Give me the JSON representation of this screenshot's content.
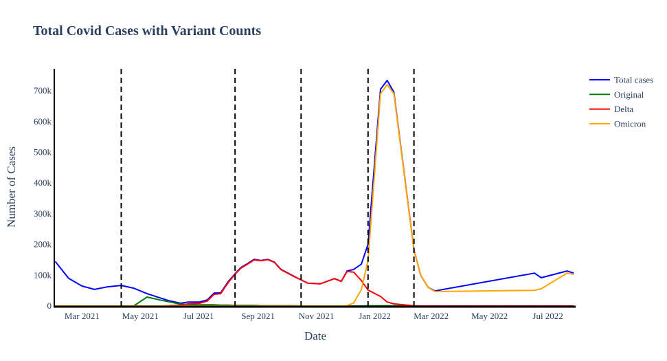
{
  "chart_data": {
    "type": "line",
    "title": "Total Covid Cases with Variant Counts",
    "xlabel": "Date",
    "ylabel": "Number of Cases",
    "xlim": [
      "2021-01-31",
      "2022-07-30"
    ],
    "ylim": [
      0,
      772000
    ],
    "grid": false,
    "legend_placement": "top-right, outside plot",
    "x_ticks": [
      {
        "date": "2021-03-01",
        "label": "Mar 2021"
      },
      {
        "date": "2021-05-01",
        "label": "May 2021"
      },
      {
        "date": "2021-07-01",
        "label": "Jul 2021"
      },
      {
        "date": "2021-09-01",
        "label": "Sep 2021"
      },
      {
        "date": "2021-11-01",
        "label": "Nov 2021"
      },
      {
        "date": "2022-01-01",
        "label": "Jan 2022"
      },
      {
        "date": "2022-03-01",
        "label": "Mar 2022"
      },
      {
        "date": "2022-05-01",
        "label": "May 2022"
      },
      {
        "date": "2022-07-01",
        "label": "Jul 2022"
      }
    ],
    "y_ticks": [
      {
        "value": 0,
        "label": "0"
      },
      {
        "value": 100000,
        "label": "100k"
      },
      {
        "value": 200000,
        "label": "200k"
      },
      {
        "value": 300000,
        "label": "300k"
      },
      {
        "value": 400000,
        "label": "400k"
      },
      {
        "value": 500000,
        "label": "500k"
      },
      {
        "value": 600000,
        "label": "600k"
      },
      {
        "value": 700000,
        "label": "700k"
      }
    ],
    "vertical_dashed_lines": [
      "2021-04-11",
      "2021-08-08",
      "2021-10-16",
      "2021-12-25",
      "2022-02-11"
    ],
    "x": [
      "2021-02-01",
      "2021-02-15",
      "2021-03-01",
      "2021-03-14",
      "2021-03-27",
      "2021-04-11",
      "2021-04-24",
      "2021-05-08",
      "2021-05-21",
      "2021-05-30",
      "2021-06-12",
      "2021-06-20",
      "2021-07-02",
      "2021-07-10",
      "2021-07-17",
      "2021-07-24",
      "2021-08-01",
      "2021-08-08",
      "2021-08-14",
      "2021-08-21",
      "2021-08-28",
      "2021-09-04",
      "2021-09-11",
      "2021-09-18",
      "2021-09-25",
      "2021-10-09",
      "2021-10-16",
      "2021-10-23",
      "2021-11-05",
      "2021-11-20",
      "2021-11-27",
      "2021-12-03",
      "2021-12-10",
      "2021-12-18",
      "2021-12-25",
      "2022-01-07",
      "2022-01-14",
      "2022-01-21",
      "2022-02-11",
      "2022-02-18",
      "2022-02-26",
      "2022-03-05",
      "2022-06-17",
      "2022-06-24",
      "2022-07-21",
      "2022-07-28"
    ],
    "series": [
      {
        "name": "Total cases",
        "color": "#0000ff",
        "values": [
          145000,
          90000,
          65000,
          54000,
          62000,
          67000,
          58000,
          40000,
          27000,
          18000,
          9000,
          13000,
          13000,
          20000,
          42000,
          43000,
          80000,
          105000,
          125000,
          138000,
          152000,
          148000,
          152000,
          143000,
          119000,
          96000,
          85000,
          74000,
          72000,
          89000,
          80000,
          114000,
          119000,
          136000,
          201000,
          705000,
          734000,
          696000,
          183000,
          100000,
          60000,
          49000,
          107000,
          92000,
          114000,
          107000
        ]
      },
      {
        "name": "Original",
        "color": "#008000",
        "values": [
          0,
          0,
          0,
          0,
          0,
          0,
          0,
          29000,
          20000,
          14000,
          6000,
          5000,
          4000,
          4000,
          4000,
          3000,
          3000,
          2000,
          2000,
          2000,
          2000,
          1000,
          1000,
          1000,
          1000,
          1000,
          0,
          0,
          0,
          0,
          0,
          0,
          0,
          0,
          1000,
          1000,
          1000,
          1000,
          0,
          0,
          0,
          0,
          0,
          0,
          0,
          0
        ]
      },
      {
        "name": "Delta",
        "color": "#ff0000",
        "values": [
          0,
          0,
          0,
          0,
          0,
          0,
          0,
          0,
          0,
          1000,
          3000,
          7000,
          9000,
          16000,
          38000,
          40000,
          77000,
          103000,
          123000,
          136000,
          150000,
          147000,
          151000,
          142000,
          118000,
          95000,
          85000,
          74000,
          72000,
          89000,
          80000,
          112000,
          110000,
          83000,
          52000,
          31000,
          13000,
          7000,
          1000,
          0,
          0,
          0,
          0,
          0,
          0,
          0
        ]
      },
      {
        "name": "Omicron",
        "color": "#ffa500",
        "values": [
          0,
          0,
          0,
          0,
          0,
          0,
          0,
          0,
          0,
          0,
          0,
          0,
          0,
          0,
          0,
          0,
          0,
          0,
          0,
          0,
          0,
          0,
          0,
          0,
          0,
          0,
          0,
          0,
          0,
          0,
          0,
          1000,
          10000,
          53000,
          148000,
          690000,
          720000,
          691000,
          182000,
          100000,
          60000,
          47000,
          51000,
          56000,
          107000,
          103000
        ]
      }
    ]
  }
}
